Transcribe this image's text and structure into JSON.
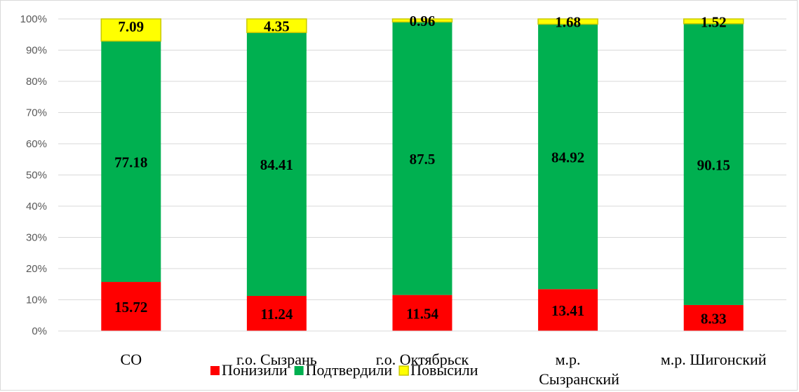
{
  "chart_data": {
    "type": "bar",
    "stacked": true,
    "percent_stacked": true,
    "categories": [
      "СО",
      "г.о. Сызрань",
      "г.о. Октябрьск",
      "м.р. Сызранский",
      "м.р. Шигонский"
    ],
    "series": [
      {
        "name": "Понизили",
        "values": [
          15.72,
          11.24,
          11.54,
          13.41,
          8.33
        ],
        "color": "#ff0000"
      },
      {
        "name": "Подтвердили",
        "values": [
          77.18,
          84.41,
          87.5,
          84.92,
          90.15
        ],
        "color": "#00b050"
      },
      {
        "name": "Повысили",
        "values": [
          7.09,
          4.35,
          0.96,
          1.68,
          1.52
        ],
        "color": "#ffff00"
      }
    ],
    "y_ticks": [
      "0%",
      "10%",
      "20%",
      "30%",
      "40%",
      "50%",
      "60%",
      "70%",
      "80%",
      "90%",
      "100%"
    ],
    "ylim": [
      0,
      100
    ],
    "grid": true,
    "legend_position": "bottom",
    "title": "",
    "xlabel": "",
    "ylabel": ""
  }
}
